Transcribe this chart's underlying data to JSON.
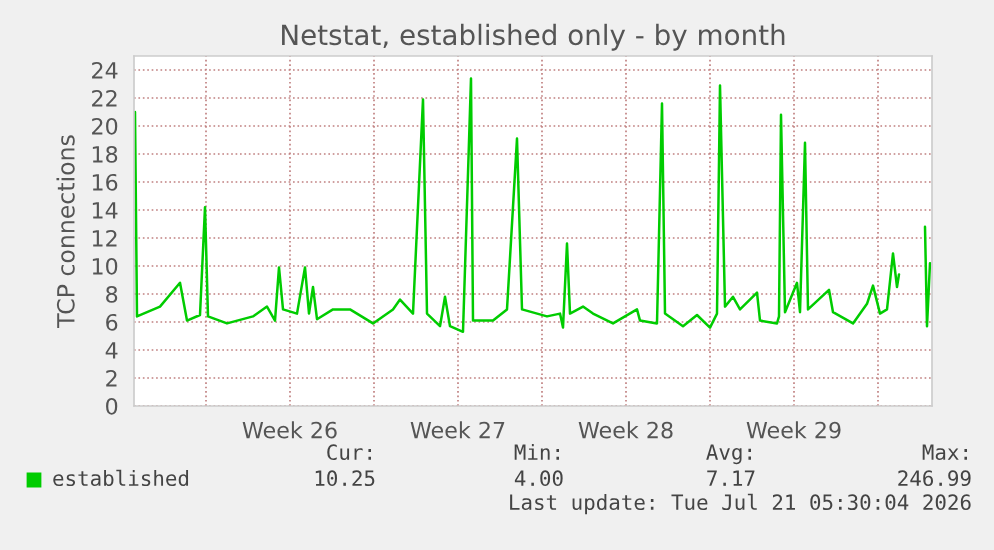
{
  "chart_data": {
    "type": "line",
    "title": "Netstat, established only - by month",
    "ylabel": "TCP connections",
    "xlim": [
      "2026-06-18T00:00",
      "2026-07-21T06:00"
    ],
    "ylim": [
      0,
      25
    ],
    "xticks": [
      {
        "value": "2026-06-21",
        "label": null
      },
      {
        "value": "2026-06-24T12:00",
        "label": "Week 26"
      },
      {
        "value": "2026-06-28",
        "label": null
      },
      {
        "value": "2026-07-01T12:00",
        "label": "Week 27"
      },
      {
        "value": "2026-07-05",
        "label": null
      },
      {
        "value": "2026-07-08T12:00",
        "label": "Week 28"
      },
      {
        "value": "2026-07-12",
        "label": null
      },
      {
        "value": "2026-07-15T12:00",
        "label": "Week 29"
      },
      {
        "value": "2026-07-19",
        "label": null
      }
    ],
    "yticks": [
      0,
      2,
      4,
      6,
      8,
      10,
      12,
      14,
      16,
      18,
      20,
      22,
      24
    ],
    "grid": true,
    "legend": "bottom",
    "marker": "none",
    "line_style": "solid",
    "series": [
      {
        "name": "established",
        "color": "#00cc00",
        "x": [
          "2026-06-18T01:00",
          "2026-06-18T03:00",
          "2026-06-19T02:00",
          "2026-06-19T22:00",
          "2026-06-20T05:00",
          "2026-06-20T18:00",
          "2026-06-20T23:00",
          "2026-06-21T02:00",
          "2026-06-21T21:00",
          "2026-06-22T23:00",
          "2026-06-23T13:00",
          "2026-06-23T21:00",
          "2026-06-24T01:00",
          "2026-06-24T05:00",
          "2026-06-24T19:00",
          "2026-06-25T03:00",
          "2026-06-25T07:00",
          "2026-06-25T11:00",
          "2026-06-25T15:00",
          "2026-06-26T07:00",
          "2026-06-27T00:00",
          "2026-06-27T23:00",
          "2026-06-28T19:00",
          "2026-06-29T02:00",
          "2026-06-29T15:00",
          "2026-06-30T01:00",
          "2026-06-30T05:00",
          "2026-06-30T18:00",
          "2026-06-30T23:00",
          "2026-07-01T04:00",
          "2026-07-01T17:00",
          "2026-07-02T01:00",
          "2026-07-02T03:00",
          "2026-07-02T23:00",
          "2026-07-03T13:00",
          "2026-07-03T23:00",
          "2026-07-04T04:00",
          "2026-07-05T05:00",
          "2026-07-05T18:00",
          "2026-07-05T21:00",
          "2026-07-06T01:00",
          "2026-07-06T04:00",
          "2026-07-06T17:00",
          "2026-07-07T03:00",
          "2026-07-07T23:00",
          "2026-07-08T23:00",
          "2026-07-09T02:00",
          "2026-07-09T19:00",
          "2026-07-10T00:00",
          "2026-07-10T03:00",
          "2026-07-10T21:00",
          "2026-07-11T11:00",
          "2026-07-12T00:00",
          "2026-07-12T07:00",
          "2026-07-12T10:00",
          "2026-07-12T15:00",
          "2026-07-12T23:00",
          "2026-07-13T06:00",
          "2026-07-13T23:00",
          "2026-07-14T02:00",
          "2026-07-14T19:00",
          "2026-07-14T21:00",
          "2026-07-14T23:00",
          "2026-07-15T03:00",
          "2026-07-15T15:00",
          "2026-07-15T18:00",
          "2026-07-15T23:00",
          "2026-07-16T02:00",
          "2026-07-16T23:00",
          "2026-07-17T03:00",
          "2026-07-17T23:00",
          "2026-07-18T13:00",
          "2026-07-18T19:00",
          "2026-07-19T02:00",
          "2026-07-19T09:00",
          "2026-07-19T15:00",
          "2026-07-19T19:00",
          "2026-07-19T21:00",
          "2026-07-20T07:00",
          "2026-07-20T23:00",
          "2026-07-21T01:00",
          "2026-07-21T04:00"
        ],
        "values": [
          21.0,
          6.4,
          7.1,
          8.8,
          6.1,
          6.5,
          14.2,
          6.4,
          5.9,
          6.4,
          7.1,
          6.1,
          9.9,
          6.9,
          6.6,
          9.9,
          6.6,
          8.5,
          6.2,
          6.9,
          6.9,
          5.9,
          6.9,
          7.6,
          6.6,
          21.9,
          6.6,
          5.7,
          7.8,
          5.7,
          5.3,
          23.4,
          6.1,
          6.1,
          6.9,
          19.1,
          6.9,
          6.4,
          6.6,
          5.6,
          11.6,
          6.6,
          7.1,
          6.6,
          5.9,
          6.9,
          6.1,
          5.9,
          21.6,
          6.6,
          5.7,
          6.5,
          5.6,
          6.6,
          22.9,
          7.1,
          7.8,
          6.9,
          8.1,
          6.1,
          5.9,
          6.4,
          20.8,
          6.7,
          8.8,
          6.7,
          18.8,
          6.9,
          8.3,
          6.7,
          5.9,
          7.3,
          8.6,
          6.6,
          6.9,
          10.9,
          8.5,
          9.4,
          null,
          12.8,
          5.7,
          10.2
        ]
      }
    ],
    "annotations": [
      "Cur:",
      "Min:",
      "Avg:",
      "Max:",
      "10.25",
      "4.00",
      "7.17",
      "246.99",
      "Last update: Tue Jul 21 05:30:04 2026"
    ]
  }
}
